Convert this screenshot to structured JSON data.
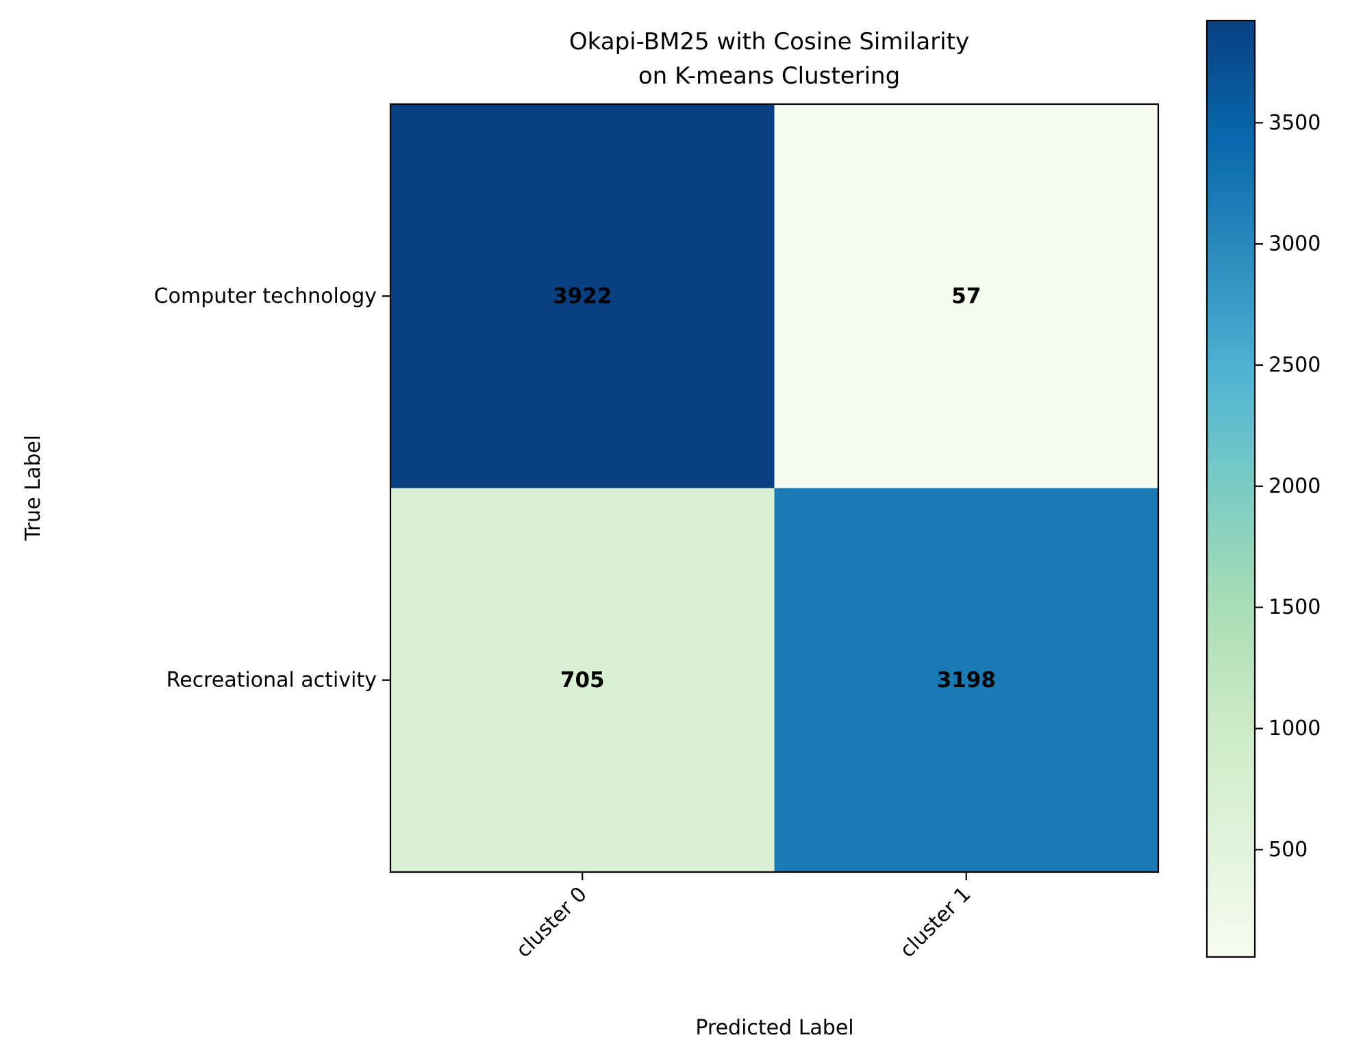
{
  "chart_data": {
    "type": "heatmap",
    "title_lines": [
      "Okapi-BM25 with Cosine Similarity",
      "on K-means Clustering"
    ],
    "xlabel": "Predicted Label",
    "ylabel": "True Label",
    "x_categories": [
      "cluster 0",
      "cluster 1"
    ],
    "y_categories": [
      "Computer technology",
      "Recreational activity"
    ],
    "matrix": [
      [
        3922,
        57
      ],
      [
        705,
        3198
      ]
    ],
    "colormap": "GnBu",
    "colorbar": {
      "min": 57,
      "max": 3922,
      "ticks": [
        500,
        1000,
        1500,
        2000,
        2500,
        3000,
        3500
      ],
      "tick_labels": [
        "500",
        "1000",
        "1500",
        "2000",
        "2500",
        "3000",
        "3500"
      ]
    },
    "grid": false
  }
}
